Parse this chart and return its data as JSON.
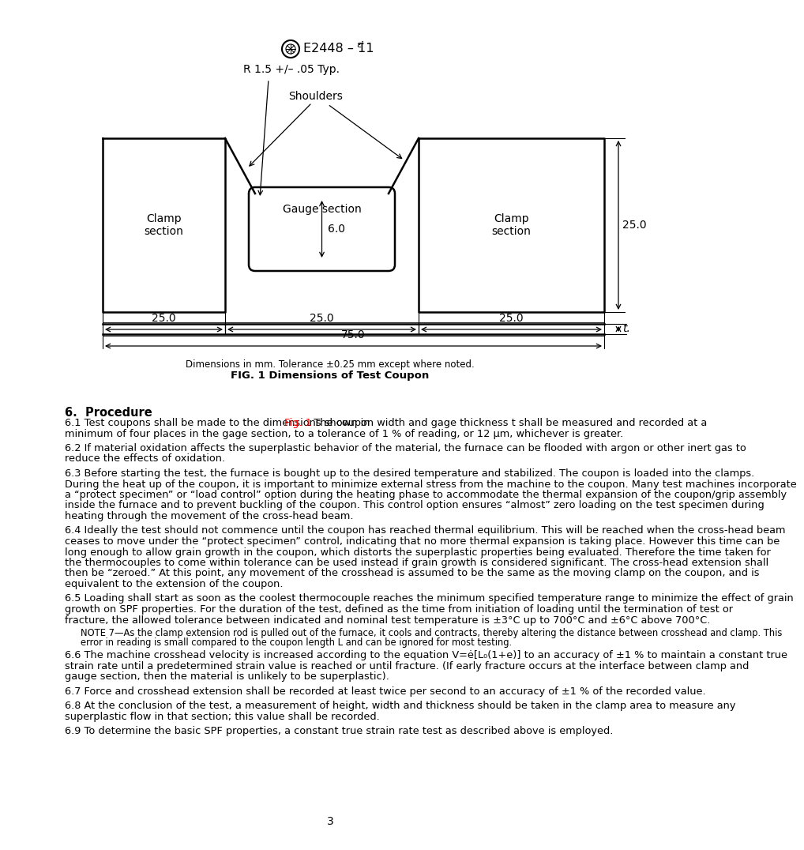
{
  "page_number": "3",
  "header_text": "E2448 – 11",
  "header_sup": "ε¹",
  "label_R": "R 1.5 +/– .05 Typ.",
  "label_shoulders": "Shoulders",
  "fig_caption_line1": "Dimensions in mm. Tolerance ±0.25 mm except where noted.",
  "fig_caption_line2": "FIG. 1 Dimensions of Test Coupon",
  "section_header": "6.  Procedure",
  "dim_25_left": "25.0",
  "dim_25_center": "25.0",
  "dim_25_right": "25.0",
  "dim_75": "75.0",
  "dim_25_height": "25.0",
  "dim_6": "6.0",
  "dim_t": "t.",
  "label_clamp_left": "Clamp\nsection",
  "label_gauge": "Gauge section",
  "label_clamp_right": "Clamp\nsection",
  "para_61_pre": "6.1  Test coupons shall be made to the dimensions shown in ",
  "para_61_link": "Fig. 1",
  "para_61_post": ". The coupon width and gage thickness τ shall be measured and recorded at a minimum of four places in the gage section, to a tolerance of 1 % of reading, or 12 μm, whichever is greater.",
  "para_62": "6.2  If material oxidation affects the superplastic behavior of the material, the furnace can be flooded with argon or other inert gas to reduce the effects of oxidation.",
  "para_63": "6.3  Before starting the test, the furnace is bought up to the desired temperature and stabilized. The coupon is loaded into the clamps. During the heat up of the coupon, it is important to minimize external stress from the machine to the coupon. Many test machines incorporate a “protect specimen” or “load control” option during the heating phase to accommodate the thermal expansion of the coupon/grip assembly inside the furnace and to prevent buckling of the coupon. This control option ensures “almost” zero loading on the test specimen during heating through the movement of the cross-head beam.",
  "para_64": "6.4  Ideally the test should not commence until the coupon has reached thermal equilibrium. This will be reached when the cross-head beam ceases to move under the “protect specimen” control, indicating that no more thermal expansion is taking place. However this time can be long enough to allow grain growth in the coupon, which distorts the superplastic properties being evaluated. Therefore the time taken for the thermocouples to come within tolerance can be used instead if grain growth is considered significant. The cross-head extension shall then be “zeroed.” At this point, any movement of the crosshead is assumed to be the same as the moving clamp on the coupon, and is equivalent to the extension of the coupon.",
  "para_65": "6.5  Loading shall start as soon as the coolest thermocouple reaches the minimum specified temperature range to minimize the effect of grain growth on SPF properties. For the duration of the test, defined as the time from initiation of loading until the termination of test or fracture, the allowed tolerance between indicated and nominal test temperature is ±3°C up to 700°C and ±6°C above 700°C.",
  "note_7": "NOTE 7—As the clamp extension rod is pulled out of the furnace, it cools and contracts, thereby altering the distance between crosshead and clamp. This error in reading is small compared to the coupon length L and can be ignored for most testing.",
  "para_66": "6.6  The machine crosshead velocity is increased according to the equation V=ė[L₀(1+e)] to an accuracy of ±1 % to maintain a constant true strain rate until a predetermined strain value is reached or until fracture. (If early fracture occurs at the interface between clamp and gauge section, then the material is unlikely to be superplastic).",
  "para_67": "6.7  Force and crosshead extension shall be recorded at least twice per second to an accuracy of ±1 % of the recorded value.",
  "para_68": "6.8  At the conclusion of the test, a measurement of height, width and thickness should be taken in the clamp area to measure any superplastic flow in that section; this value shall be recorded.",
  "para_69": "6.9  To determine the basic SPF properties, a constant true strain rate test as described above is employed."
}
